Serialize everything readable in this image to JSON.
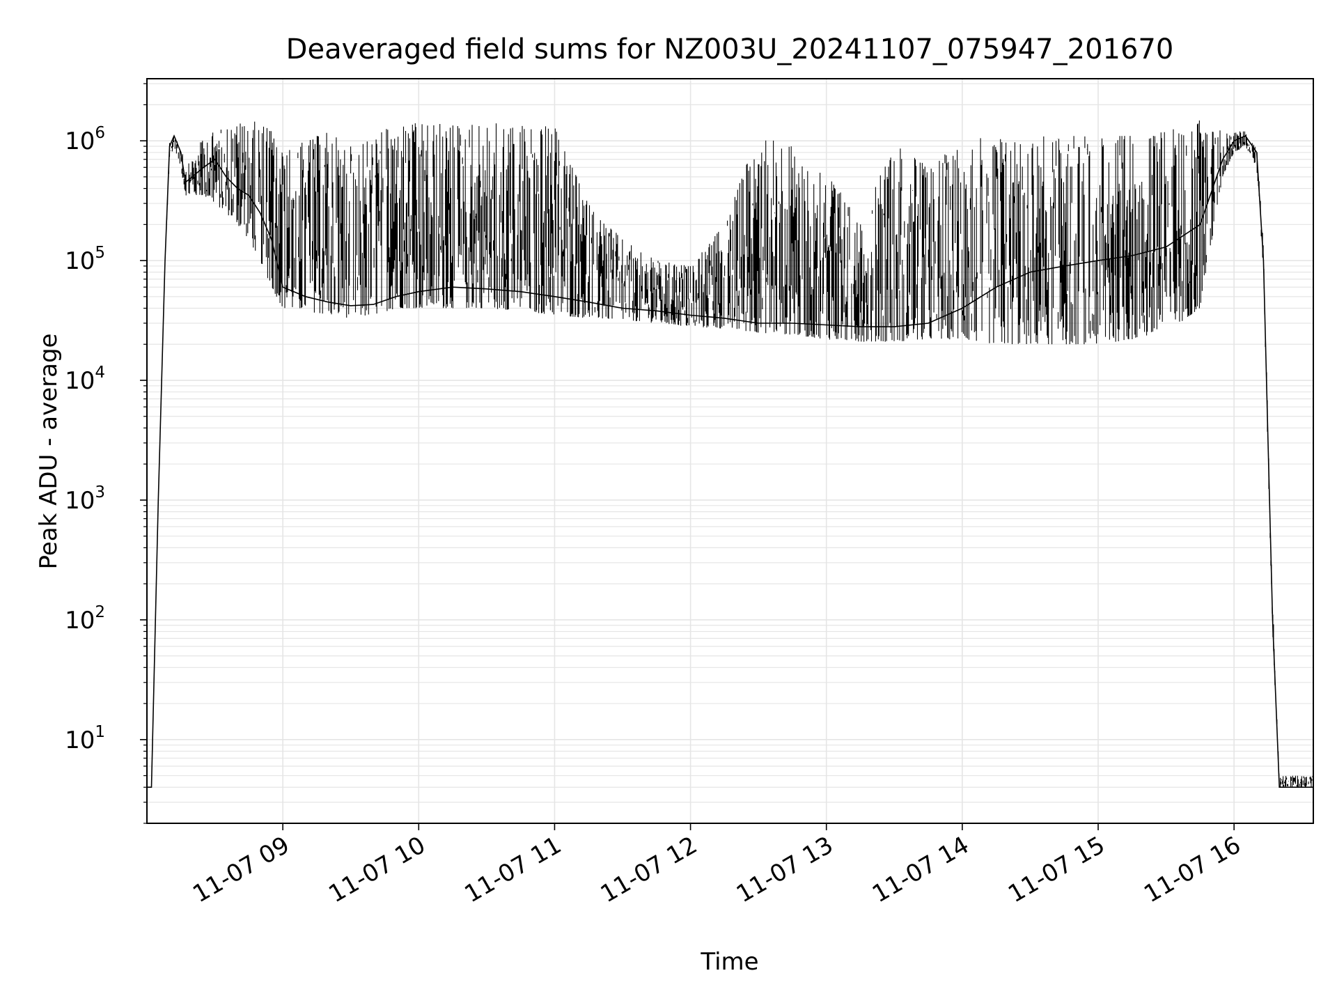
{
  "chart_data": {
    "type": "line",
    "title": "Deaveraged field sums for NZ003U_20241107_075947_201670",
    "xlabel": "Time",
    "ylabel": "Peak ADU - average",
    "y_scale": "log",
    "ylim": [
      2,
      3300000
    ],
    "xlim": [
      "2024-11-07 08:00",
      "2024-11-07 16:35"
    ],
    "x_tick_labels": [
      "11-07 09",
      "11-07 10",
      "11-07 11",
      "11-07 12",
      "11-07 13",
      "11-07 14",
      "11-07 15",
      "11-07 16"
    ],
    "y_tick_labels": [
      {
        "base": "10",
        "exp": "1"
      },
      {
        "base": "10",
        "exp": "2"
      },
      {
        "base": "10",
        "exp": "3"
      },
      {
        "base": "10",
        "exp": "4"
      },
      {
        "base": "10",
        "exp": "5"
      },
      {
        "base": "10",
        "exp": "6"
      }
    ],
    "grid": true,
    "line_color": "#000000",
    "grid_color": "#e5e5e5",
    "series": [
      {
        "x": [
          "08:00",
          "08:02",
          "08:05",
          "08:08",
          "08:10",
          "08:12",
          "08:15",
          "08:17",
          "08:20",
          "08:25",
          "08:30",
          "08:35",
          "08:40",
          "08:45",
          "08:50",
          "08:55",
          "09:00",
          "09:10",
          "09:20",
          "09:30",
          "09:40",
          "09:50",
          "10:00",
          "10:15",
          "10:30",
          "10:45",
          "11:00",
          "11:15",
          "11:30",
          "11:45",
          "12:00",
          "12:15",
          "12:30",
          "12:45",
          "13:00",
          "13:15",
          "13:30",
          "13:45",
          "14:00",
          "14:15",
          "14:30",
          "14:45",
          "15:00",
          "15:15",
          "15:30",
          "15:45",
          "15:55",
          "16:00",
          "16:05",
          "16:10",
          "16:13",
          "16:15",
          "16:17",
          "16:20",
          "16:25",
          "16:30",
          "16:35"
        ],
        "y": [
          4,
          4,
          1000,
          100000,
          900000,
          1100000,
          800000,
          450000,
          500000,
          600000,
          700000,
          500000,
          400000,
          350000,
          250000,
          150000,
          60000,
          50000,
          45000,
          42000,
          43000,
          50000,
          55000,
          60000,
          58000,
          55000,
          50000,
          45000,
          40000,
          38000,
          35000,
          33000,
          30000,
          30000,
          29000,
          28000,
          28000,
          30000,
          40000,
          60000,
          80000,
          90000,
          100000,
          110000,
          130000,
          200000,
          700000,
          1000000,
          1100000,
          800000,
          100000,
          3000,
          100,
          4,
          4,
          4,
          4
        ],
        "band_low": [
          4,
          4,
          1000,
          100000,
          700000,
          900000,
          600000,
          350000,
          350000,
          350000,
          300000,
          250000,
          200000,
          150000,
          100000,
          60000,
          40000,
          38000,
          35000,
          33000,
          35000,
          40000,
          40000,
          40000,
          40000,
          38000,
          35000,
          33000,
          32000,
          30000,
          28000,
          27000,
          25000,
          24000,
          22000,
          21000,
          21000,
          22000,
          22000,
          20000,
          20000,
          20000,
          20000,
          22000,
          25000,
          40000,
          500000,
          800000,
          900000,
          600000,
          80000,
          2000,
          80,
          4,
          4,
          4,
          4
        ],
        "band_high": [
          4,
          4,
          1000,
          100000,
          1000000,
          1150000,
          1000000,
          600000,
          700000,
          1100000,
          1200000,
          1300000,
          1400000,
          1500000,
          1400000,
          1300000,
          800000,
          1000000,
          1200000,
          900000,
          1100000,
          1400000,
          1400000,
          1400000,
          1400000,
          1400000,
          1300000,
          300000,
          150000,
          100000,
          90000,
          200000,
          1200000,
          900000,
          600000,
          200000,
          1000000,
          600000,
          1000000,
          1100000,
          1100000,
          1100000,
          1100000,
          1100000,
          1200000,
          1500000,
          1200000,
          1200000,
          1200000,
          900000,
          150000,
          4000,
          150,
          5,
          5,
          5,
          5
        ]
      }
    ]
  }
}
